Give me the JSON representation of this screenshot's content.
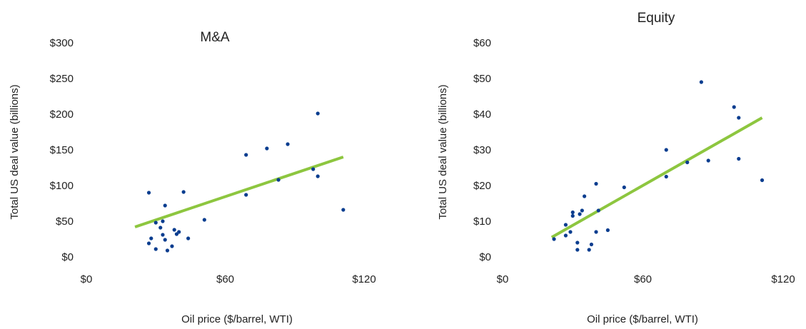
{
  "colors": {
    "point": "#0a3d8f",
    "trend": "#8dc63f",
    "text": "#222222"
  },
  "chart_data": [
    {
      "type": "scatter",
      "title": "M&A",
      "xlabel": "Oil price ($/barrel, WTI)",
      "ylabel": "Total US deal value (billions)",
      "xlim": [
        0,
        120
      ],
      "ylim": [
        0,
        300
      ],
      "xticks": [
        0,
        60,
        120
      ],
      "xtick_labels": [
        "$0",
        "$60",
        "$120"
      ],
      "yticks": [
        0,
        50,
        100,
        150,
        200,
        250,
        300
      ],
      "ytick_labels": [
        "$0",
        "$50",
        "$100",
        "$150",
        "$200",
        "$250",
        "$300"
      ],
      "grid": false,
      "legend": false,
      "points": [
        {
          "x": 27,
          "y": 90
        },
        {
          "x": 27,
          "y": 19
        },
        {
          "x": 28,
          "y": 26
        },
        {
          "x": 30,
          "y": 11
        },
        {
          "x": 30,
          "y": 48
        },
        {
          "x": 32,
          "y": 41
        },
        {
          "x": 33,
          "y": 50
        },
        {
          "x": 33,
          "y": 31
        },
        {
          "x": 34,
          "y": 24
        },
        {
          "x": 34,
          "y": 72
        },
        {
          "x": 35,
          "y": 9
        },
        {
          "x": 37,
          "y": 15
        },
        {
          "x": 38,
          "y": 38
        },
        {
          "x": 39,
          "y": 32
        },
        {
          "x": 40,
          "y": 35
        },
        {
          "x": 42,
          "y": 91
        },
        {
          "x": 44,
          "y": 26
        },
        {
          "x": 51,
          "y": 52
        },
        {
          "x": 69,
          "y": 143
        },
        {
          "x": 69,
          "y": 87
        },
        {
          "x": 78,
          "y": 152
        },
        {
          "x": 83,
          "y": 108
        },
        {
          "x": 87,
          "y": 158
        },
        {
          "x": 98,
          "y": 123
        },
        {
          "x": 100,
          "y": 201
        },
        {
          "x": 100,
          "y": 113
        },
        {
          "x": 111,
          "y": 66
        }
      ],
      "trendline": {
        "x": [
          21,
          111
        ],
        "y": [
          42,
          140
        ]
      }
    },
    {
      "type": "scatter",
      "title": "Equity",
      "xlabel": "Oil price ($/barrel, WTI)",
      "ylabel": "Total US deal value (billions)",
      "xlim": [
        0,
        120
      ],
      "ylim": [
        0,
        60
      ],
      "xticks": [
        0,
        60,
        120
      ],
      "xtick_labels": [
        "$0",
        "$60",
        "$120"
      ],
      "yticks": [
        0,
        10,
        20,
        30,
        40,
        50,
        60
      ],
      "ytick_labels": [
        "$0",
        "$10",
        "$20",
        "$30",
        "$40",
        "$50",
        "$60"
      ],
      "grid": false,
      "legend": false,
      "points": [
        {
          "x": 22,
          "y": 5
        },
        {
          "x": 27,
          "y": 6
        },
        {
          "x": 27,
          "y": 9
        },
        {
          "x": 29,
          "y": 7
        },
        {
          "x": 30,
          "y": 11.5
        },
        {
          "x": 30,
          "y": 12.5
        },
        {
          "x": 32,
          "y": 4
        },
        {
          "x": 32,
          "y": 2
        },
        {
          "x": 33,
          "y": 12
        },
        {
          "x": 34,
          "y": 13
        },
        {
          "x": 35,
          "y": 17
        },
        {
          "x": 37,
          "y": 2
        },
        {
          "x": 38,
          "y": 3.5
        },
        {
          "x": 40,
          "y": 20.5
        },
        {
          "x": 40,
          "y": 7
        },
        {
          "x": 41,
          "y": 13
        },
        {
          "x": 45,
          "y": 7.5
        },
        {
          "x": 52,
          "y": 19.5
        },
        {
          "x": 70,
          "y": 30
        },
        {
          "x": 70,
          "y": 22.5
        },
        {
          "x": 79,
          "y": 26.5
        },
        {
          "x": 85,
          "y": 49
        },
        {
          "x": 88,
          "y": 27
        },
        {
          "x": 99,
          "y": 42
        },
        {
          "x": 101,
          "y": 39
        },
        {
          "x": 101,
          "y": 27.5
        },
        {
          "x": 111,
          "y": 21.5
        }
      ],
      "trendline": {
        "x": [
          21,
          111
        ],
        "y": [
          5.5,
          39
        ]
      }
    }
  ]
}
